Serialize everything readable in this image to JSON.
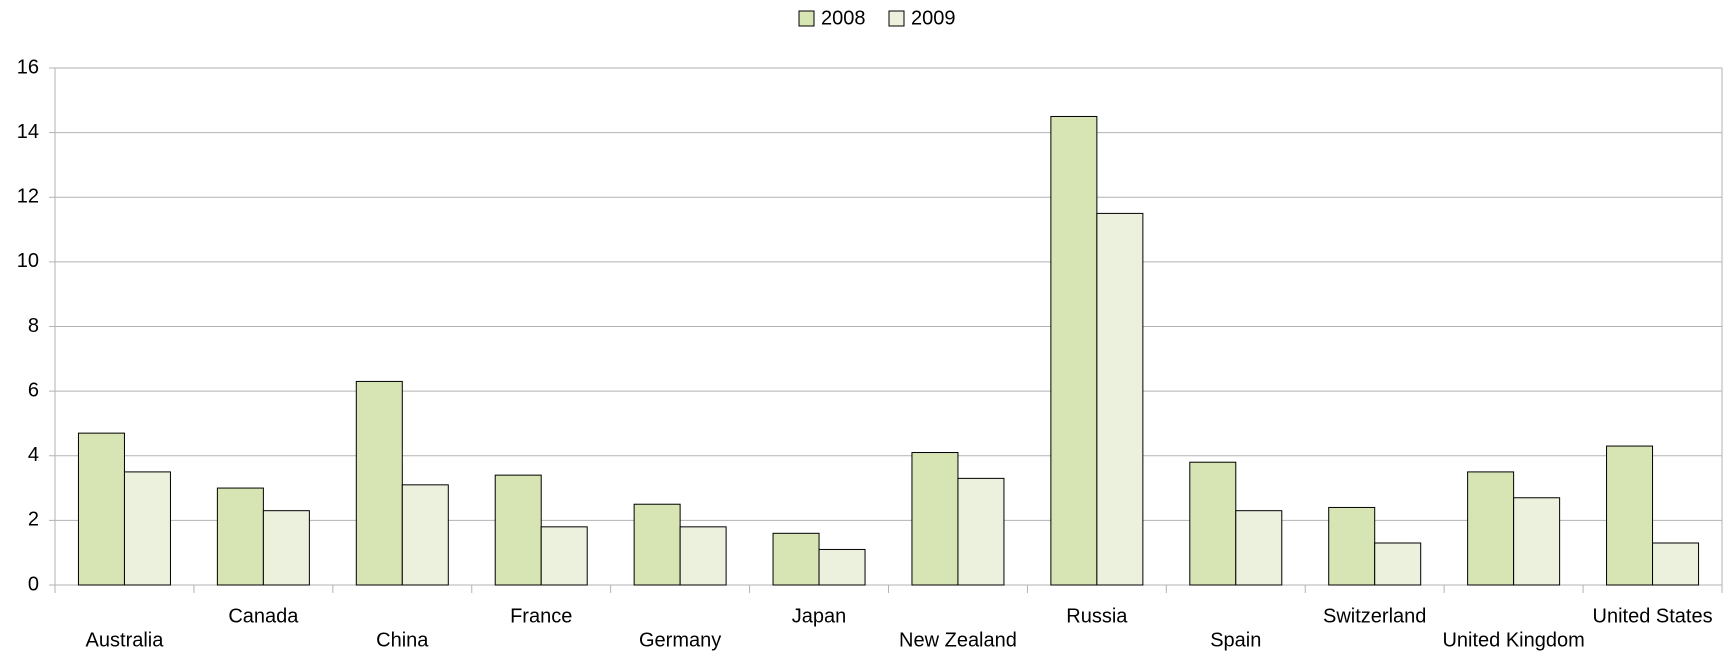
{
  "chart_data": {
    "type": "bar",
    "categories": [
      "Australia",
      "Canada",
      "China",
      "France",
      "Germany",
      "Japan",
      "New Zealand",
      "Russia",
      "Spain",
      "Switzerland",
      "United Kingdom",
      "United States"
    ],
    "series": [
      {
        "name": "2008",
        "color": "#d7e4b4",
        "values": [
          4.7,
          3.0,
          6.3,
          3.4,
          2.5,
          1.6,
          4.1,
          14.5,
          3.8,
          2.4,
          3.5,
          4.3
        ]
      },
      {
        "name": "2009",
        "color": "#ebf1dd",
        "values": [
          3.5,
          2.3,
          3.1,
          1.8,
          1.8,
          1.1,
          3.3,
          11.5,
          2.3,
          1.3,
          2.7,
          1.3
        ]
      }
    ],
    "ylim": [
      0,
      16
    ],
    "yticks": [
      0,
      2,
      4,
      6,
      8,
      10,
      12,
      14,
      16
    ],
    "grid": true,
    "legend": "top"
  }
}
